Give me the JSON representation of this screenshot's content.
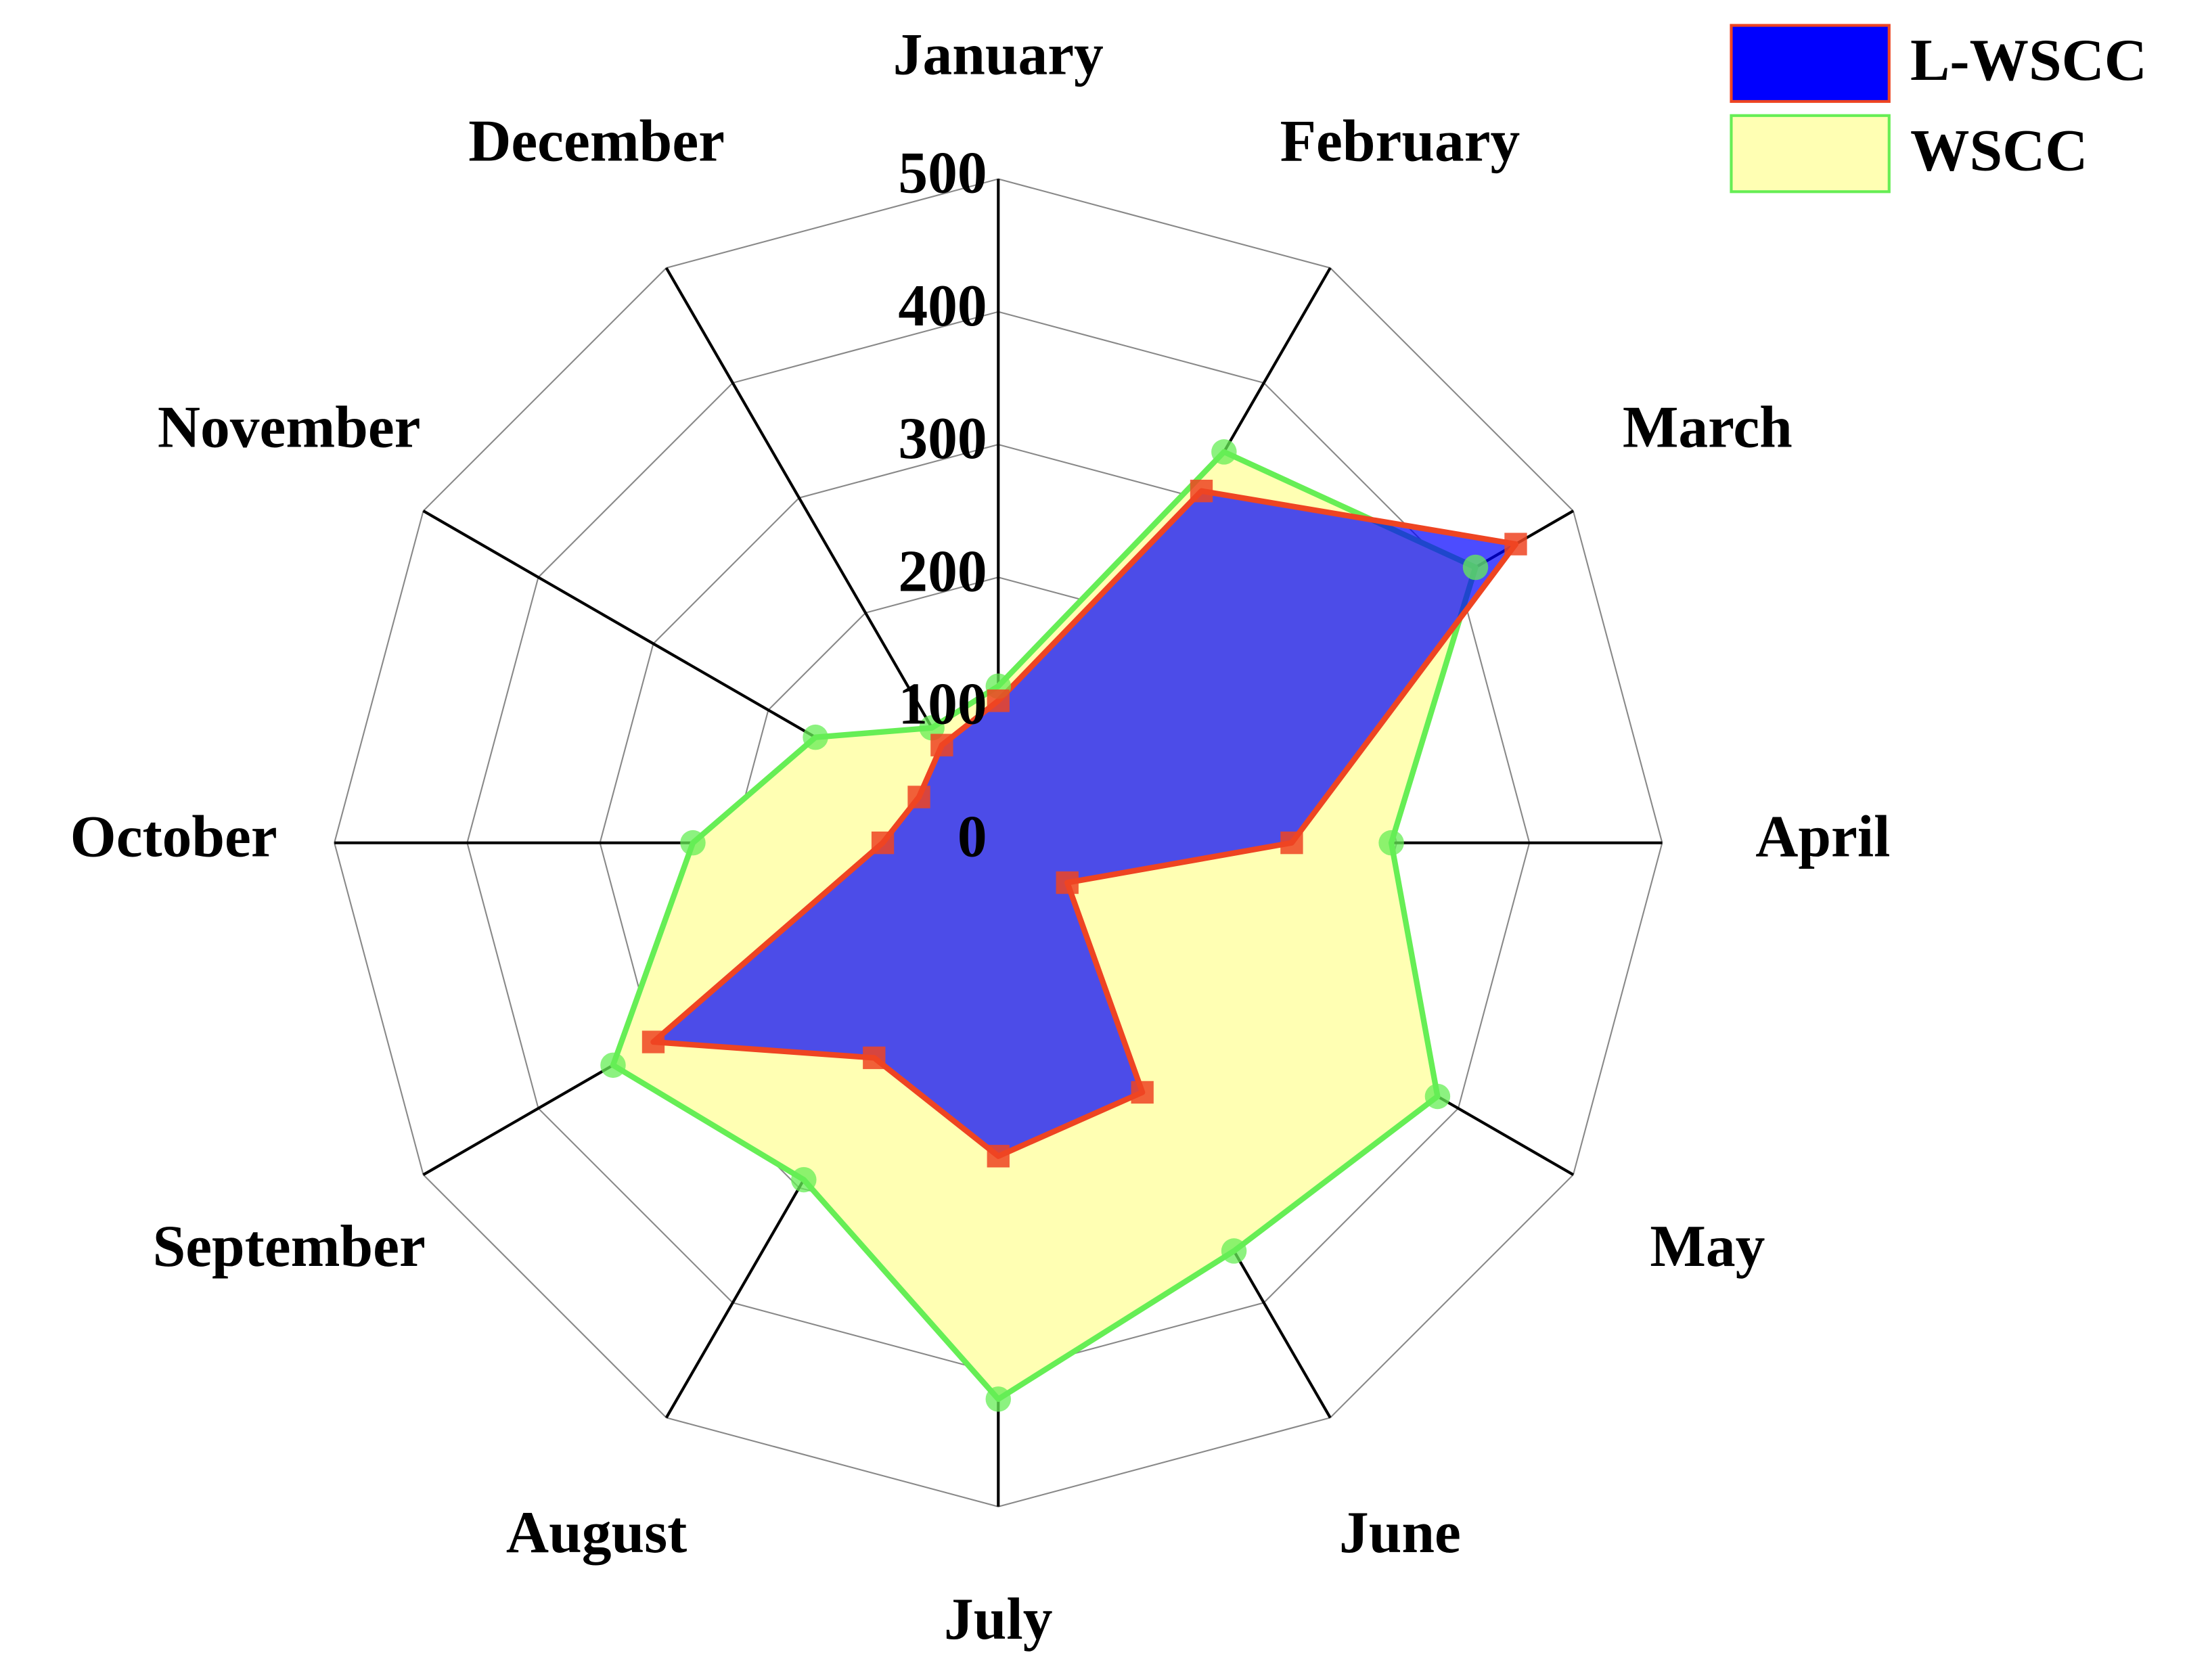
{
  "chart_data": {
    "type": "radar",
    "categories": [
      "January",
      "February",
      "March",
      "April",
      "May",
      "June",
      "July",
      "August",
      "September",
      "October",
      "November",
      "December"
    ],
    "series": [
      {
        "name": "WSCC",
        "color": "#ffffb3",
        "edge_color": "#66ee55",
        "marker": "circle",
        "values": [
          118,
          340,
          415,
          296,
          382,
          355,
          419,
          293,
          335,
          230,
          159,
          100
        ]
      },
      {
        "name": "L-WSCC",
        "color": "#0000ff",
        "edge_color": "#ee4422",
        "marker": "square",
        "values": [
          107,
          306,
          450,
          221,
          60,
          217,
          236,
          187,
          300,
          87,
          69,
          85
        ]
      }
    ],
    "rlim": [
      0,
      500
    ],
    "rticks": [
      0,
      100,
      200,
      300,
      400,
      500
    ],
    "grid": true,
    "legend": "top-right"
  }
}
